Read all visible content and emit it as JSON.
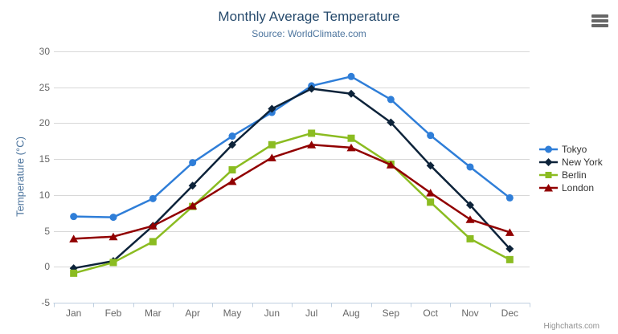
{
  "chart": {
    "title": "Monthly Average Temperature",
    "subtitle": "Source: WorldClimate.com",
    "y_axis_title": "Temperature (°C)",
    "credit": "Highcharts.com"
  },
  "icons": {
    "menu": "hamburger-menu-icon"
  },
  "colors": {
    "title": "#274b6d",
    "subtitle": "#4d759e",
    "axis_labels": "#666666",
    "gridline": "#d8d8d8",
    "axis_line": "#c0d0e0",
    "legend_text": "#333333",
    "menu_icon": "#666666"
  },
  "chart_data": {
    "type": "line",
    "title": "Monthly Average Temperature",
    "subtitle": "Source: WorldClimate.com",
    "xlabel": "",
    "ylabel": "Temperature (°C)",
    "ylim": [
      -5,
      30
    ],
    "yticks": [
      -5,
      0,
      5,
      10,
      15,
      20,
      25,
      30
    ],
    "grid": true,
    "legend_position": "right",
    "categories": [
      "Jan",
      "Feb",
      "Mar",
      "Apr",
      "May",
      "Jun",
      "Jul",
      "Aug",
      "Sep",
      "Oct",
      "Nov",
      "Dec"
    ],
    "series": [
      {
        "name": "Tokyo",
        "color": "#2f7ed8",
        "marker": "circle",
        "values": [
          7.0,
          6.9,
          9.5,
          14.5,
          18.2,
          21.5,
          25.2,
          26.5,
          23.3,
          18.3,
          13.9,
          9.6
        ]
      },
      {
        "name": "New York",
        "color": "#0d233a",
        "marker": "diamond",
        "values": [
          -0.2,
          0.8,
          5.7,
          11.3,
          17.0,
          22.0,
          24.8,
          24.1,
          20.1,
          14.1,
          8.6,
          2.5
        ]
      },
      {
        "name": "Berlin",
        "color": "#8bbc21",
        "marker": "square",
        "values": [
          -0.9,
          0.6,
          3.5,
          8.4,
          13.5,
          17.0,
          18.6,
          17.9,
          14.3,
          9.0,
          3.9,
          1.0
        ]
      },
      {
        "name": "London",
        "color": "#910000",
        "marker": "triangle",
        "values": [
          3.9,
          4.2,
          5.7,
          8.5,
          11.9,
          15.2,
          17.0,
          16.6,
          14.2,
          10.3,
          6.6,
          4.8
        ]
      }
    ]
  }
}
